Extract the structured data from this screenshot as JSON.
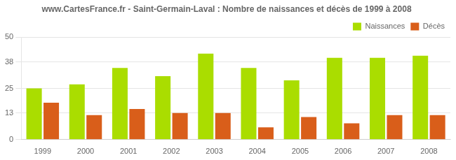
{
  "chart_data": {
    "type": "bar",
    "title": "www.CartesFrance.fr - Saint-Germain-Laval : Nombre de naissances et décès de 1999 à 2008",
    "categories": [
      "1999",
      "2000",
      "2001",
      "2002",
      "2003",
      "2004",
      "2005",
      "2006",
      "2007",
      "2008"
    ],
    "series": [
      {
        "name": "Naissances",
        "color": "#aadd00",
        "values": [
          25,
          27,
          35,
          31,
          42,
          35,
          29,
          40,
          40,
          41
        ]
      },
      {
        "name": "Décès",
        "color": "#d95e1a",
        "values": [
          18,
          12,
          15,
          13,
          13,
          6,
          11,
          8,
          12,
          12
        ]
      }
    ],
    "ylim": [
      0,
      50
    ],
    "yticks": [
      0,
      13,
      25,
      38,
      50
    ],
    "grid": true,
    "legend": "upper right"
  }
}
